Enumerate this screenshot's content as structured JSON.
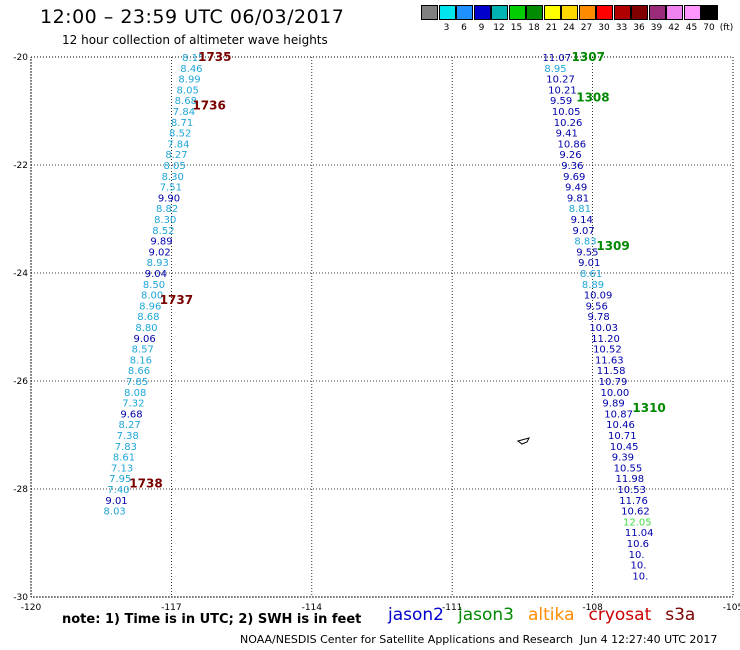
{
  "header": {
    "title": "12:00 – 23:59 UTC 06/03/2017",
    "subtitle": "12 hour collection of altimeter wave heights"
  },
  "colors": {
    "dark_blue": "#0000aa",
    "light_blue": "#1fa6d8",
    "dark_red": "#7a0000",
    "green": "#008800",
    "light_green": "#44dd44"
  },
  "colorbar": {
    "swatches": [
      "#808080",
      "#00e5ee",
      "#1e90ff",
      "#0000cd",
      "#00b2b2",
      "#00cd00",
      "#008b00",
      "#ffff00",
      "#ffd700",
      "#ff8c00",
      "#ff0000",
      "#b00000",
      "#800000",
      "#9a2a7a",
      "#ee82ee",
      "#ff96ff",
      "#000000"
    ],
    "labels": [
      "3",
      "6",
      "9",
      "12",
      "15",
      "18",
      "21",
      "24",
      "27",
      "30",
      "33",
      "36",
      "39",
      "42",
      "45",
      "70",
      "(ft)"
    ]
  },
  "axes": {
    "lat_labels": [
      "-20",
      "-22",
      "-24",
      "-26",
      "-28",
      "-30"
    ],
    "lon_labels": [
      "-120",
      "-117",
      "-114",
      "-111",
      "-108",
      "-105"
    ]
  },
  "chart_data": {
    "type": "scatter",
    "xlim": [
      -120,
      -105
    ],
    "ylim": [
      -30,
      -20
    ],
    "grid": true,
    "tracks": [
      {
        "points": [
          {
            "v": "8.15",
            "lat": -20.0,
            "lon": -116.77,
            "c": "light_blue"
          },
          {
            "v": "8.46",
            "lat": -20.2,
            "lon": -116.81,
            "c": "light_blue"
          },
          {
            "v": "8.99",
            "lat": -20.4,
            "lon": -116.85,
            "c": "light_blue"
          },
          {
            "v": "8.05",
            "lat": -20.6,
            "lon": -116.89,
            "c": "light_blue"
          },
          {
            "v": "8.68",
            "lat": -20.8,
            "lon": -116.93,
            "c": "light_blue"
          },
          {
            "v": "7.84",
            "lat": -21.0,
            "lon": -116.97,
            "c": "light_blue"
          },
          {
            "v": "8.71",
            "lat": -21.2,
            "lon": -117.01,
            "c": "light_blue"
          },
          {
            "v": "8.52",
            "lat": -21.4,
            "lon": -117.05,
            "c": "light_blue"
          },
          {
            "v": "7.84",
            "lat": -21.6,
            "lon": -117.09,
            "c": "light_blue"
          },
          {
            "v": "8.27",
            "lat": -21.8,
            "lon": -117.13,
            "c": "light_blue"
          },
          {
            "v": "8.05",
            "lat": -22.0,
            "lon": -117.17,
            "c": "light_blue"
          },
          {
            "v": "8.30",
            "lat": -22.2,
            "lon": -117.21,
            "c": "light_blue"
          },
          {
            "v": "7.51",
            "lat": -22.4,
            "lon": -117.25,
            "c": "light_blue"
          },
          {
            "v": "9.90",
            "lat": -22.6,
            "lon": -117.29,
            "c": "dark_blue"
          },
          {
            "v": "8.82",
            "lat": -22.8,
            "lon": -117.33,
            "c": "light_blue"
          },
          {
            "v": "8.30",
            "lat": -23.0,
            "lon": -117.37,
            "c": "light_blue"
          },
          {
            "v": "8.52",
            "lat": -23.2,
            "lon": -117.41,
            "c": "light_blue"
          },
          {
            "v": "9.89",
            "lat": -23.4,
            "lon": -117.45,
            "c": "dark_blue"
          },
          {
            "v": "9.02",
            "lat": -23.6,
            "lon": -117.49,
            "c": "dark_blue"
          },
          {
            "v": "8.93",
            "lat": -23.8,
            "lon": -117.53,
            "c": "light_blue"
          },
          {
            "v": "9.04",
            "lat": -24.0,
            "lon": -117.57,
            "c": "dark_blue"
          },
          {
            "v": "8.50",
            "lat": -24.2,
            "lon": -117.61,
            "c": "light_blue"
          },
          {
            "v": "8.00",
            "lat": -24.4,
            "lon": -117.65,
            "c": "light_blue"
          },
          {
            "v": "8.96",
            "lat": -24.6,
            "lon": -117.69,
            "c": "light_blue"
          },
          {
            "v": "8.68",
            "lat": -24.8,
            "lon": -117.73,
            "c": "light_blue"
          },
          {
            "v": "8.80",
            "lat": -25.0,
            "lon": -117.77,
            "c": "light_blue"
          },
          {
            "v": "9.06",
            "lat": -25.2,
            "lon": -117.81,
            "c": "dark_blue"
          },
          {
            "v": "8.57",
            "lat": -25.4,
            "lon": -117.85,
            "c": "light_blue"
          },
          {
            "v": "8.16",
            "lat": -25.6,
            "lon": -117.89,
            "c": "light_blue"
          },
          {
            "v": "8.66",
            "lat": -25.8,
            "lon": -117.93,
            "c": "light_blue"
          },
          {
            "v": "7.85",
            "lat": -26.0,
            "lon": -117.97,
            "c": "light_blue"
          },
          {
            "v": "8.08",
            "lat": -26.2,
            "lon": -118.01,
            "c": "light_blue"
          },
          {
            "v": "7.32",
            "lat": -26.4,
            "lon": -118.05,
            "c": "light_blue"
          },
          {
            "v": "9.68",
            "lat": -26.6,
            "lon": -118.09,
            "c": "dark_blue"
          },
          {
            "v": "8.27",
            "lat": -26.8,
            "lon": -118.13,
            "c": "light_blue"
          },
          {
            "v": "7.38",
            "lat": -27.0,
            "lon": -118.17,
            "c": "light_blue"
          },
          {
            "v": "7.83",
            "lat": -27.2,
            "lon": -118.21,
            "c": "light_blue"
          },
          {
            "v": "8.61",
            "lat": -27.4,
            "lon": -118.25,
            "c": "light_blue"
          },
          {
            "v": "7.13",
            "lat": -27.6,
            "lon": -118.29,
            "c": "light_blue"
          },
          {
            "v": "7.95",
            "lat": -27.8,
            "lon": -118.33,
            "c": "light_blue"
          },
          {
            "v": "7.40",
            "lat": -28.0,
            "lon": -118.37,
            "c": "light_blue"
          },
          {
            "v": "9.01",
            "lat": -28.2,
            "lon": -118.41,
            "c": "dark_blue"
          },
          {
            "v": "8.03",
            "lat": -28.4,
            "lon": -118.45,
            "c": "light_blue"
          }
        ],
        "times": [
          {
            "t": "1735",
            "lat": -20.0,
            "lon": -116.43,
            "c": "dark_red"
          },
          {
            "t": "1736",
            "lat": -20.9,
            "lon": -116.55,
            "c": "dark_red"
          },
          {
            "t": "1737",
            "lat": -24.5,
            "lon": -117.25,
            "c": "dark_red"
          },
          {
            "t": "1738",
            "lat": -27.9,
            "lon": -117.9,
            "c": "dark_red"
          }
        ]
      },
      {
        "points": [
          {
            "v": "11.07",
            "lat": -20.0,
            "lon": -109.07,
            "c": "dark_blue"
          },
          {
            "v": "8.95",
            "lat": -20.2,
            "lon": -109.03,
            "c": "light_blue"
          },
          {
            "v": "10.27",
            "lat": -20.4,
            "lon": -108.99,
            "c": "dark_blue"
          },
          {
            "v": "10.21",
            "lat": -20.6,
            "lon": -108.95,
            "c": "dark_blue"
          },
          {
            "v": "9.59",
            "lat": -20.8,
            "lon": -108.91,
            "c": "dark_blue"
          },
          {
            "v": "10.05",
            "lat": -21.0,
            "lon": -108.87,
            "c": "dark_blue"
          },
          {
            "v": "10.26",
            "lat": -21.2,
            "lon": -108.83,
            "c": "dark_blue"
          },
          {
            "v": "9.41",
            "lat": -21.4,
            "lon": -108.79,
            "c": "dark_blue"
          },
          {
            "v": "10.86",
            "lat": -21.6,
            "lon": -108.75,
            "c": "dark_blue"
          },
          {
            "v": "9.26",
            "lat": -21.8,
            "lon": -108.71,
            "c": "dark_blue"
          },
          {
            "v": "9.36",
            "lat": -22.0,
            "lon": -108.67,
            "c": "dark_blue"
          },
          {
            "v": "9.69",
            "lat": -22.2,
            "lon": -108.63,
            "c": "dark_blue"
          },
          {
            "v": "9.49",
            "lat": -22.4,
            "lon": -108.59,
            "c": "dark_blue"
          },
          {
            "v": "9.81",
            "lat": -22.6,
            "lon": -108.55,
            "c": "dark_blue"
          },
          {
            "v": "8.81",
            "lat": -22.8,
            "lon": -108.51,
            "c": "light_blue"
          },
          {
            "v": "9.14",
            "lat": -23.0,
            "lon": -108.47,
            "c": "dark_blue"
          },
          {
            "v": "9.07",
            "lat": -23.2,
            "lon": -108.43,
            "c": "dark_blue"
          },
          {
            "v": "8.83",
            "lat": -23.4,
            "lon": -108.39,
            "c": "light_blue"
          },
          {
            "v": "9.55",
            "lat": -23.6,
            "lon": -108.35,
            "c": "dark_blue"
          },
          {
            "v": "9.01",
            "lat": -23.8,
            "lon": -108.31,
            "c": "dark_blue"
          },
          {
            "v": "8.61",
            "lat": -24.0,
            "lon": -108.27,
            "c": "light_blue"
          },
          {
            "v": "8.89",
            "lat": -24.2,
            "lon": -108.23,
            "c": "light_blue"
          },
          {
            "v": "10.09",
            "lat": -24.4,
            "lon": -108.19,
            "c": "dark_blue"
          },
          {
            "v": "9.56",
            "lat": -24.6,
            "lon": -108.15,
            "c": "dark_blue"
          },
          {
            "v": "9.78",
            "lat": -24.8,
            "lon": -108.11,
            "c": "dark_blue"
          },
          {
            "v": "10.03",
            "lat": -25.0,
            "lon": -108.07,
            "c": "dark_blue"
          },
          {
            "v": "11.20",
            "lat": -25.2,
            "lon": -108.03,
            "c": "dark_blue"
          },
          {
            "v": "10.52",
            "lat": -25.4,
            "lon": -107.99,
            "c": "dark_blue"
          },
          {
            "v": "11.63",
            "lat": -25.6,
            "lon": -107.95,
            "c": "dark_blue"
          },
          {
            "v": "11.58",
            "lat": -25.8,
            "lon": -107.91,
            "c": "dark_blue"
          },
          {
            "v": "10.79",
            "lat": -26.0,
            "lon": -107.87,
            "c": "dark_blue"
          },
          {
            "v": "10.00",
            "lat": -26.2,
            "lon": -107.83,
            "c": "dark_blue"
          },
          {
            "v": "9.89",
            "lat": -26.4,
            "lon": -107.79,
            "c": "dark_blue"
          },
          {
            "v": "10.87",
            "lat": -26.6,
            "lon": -107.75,
            "c": "dark_blue"
          },
          {
            "v": "10.46",
            "lat": -26.8,
            "lon": -107.71,
            "c": "dark_blue"
          },
          {
            "v": "10.71",
            "lat": -27.0,
            "lon": -107.67,
            "c": "dark_blue"
          },
          {
            "v": "10.45",
            "lat": -27.2,
            "lon": -107.63,
            "c": "dark_blue"
          },
          {
            "v": "9.39",
            "lat": -27.4,
            "lon": -107.59,
            "c": "dark_blue"
          },
          {
            "v": "10.55",
            "lat": -27.6,
            "lon": -107.55,
            "c": "dark_blue"
          },
          {
            "v": "11.98",
            "lat": -27.8,
            "lon": -107.51,
            "c": "dark_blue"
          },
          {
            "v": "10.53",
            "lat": -28.0,
            "lon": -107.47,
            "c": "dark_blue"
          },
          {
            "v": "11.76",
            "lat": -28.2,
            "lon": -107.43,
            "c": "dark_blue"
          },
          {
            "v": "10.62",
            "lat": -28.4,
            "lon": -107.39,
            "c": "dark_blue"
          },
          {
            "v": "12.05",
            "lat": -28.6,
            "lon": -107.35,
            "c": "light_green"
          },
          {
            "v": "11.04",
            "lat": -28.8,
            "lon": -107.31,
            "c": "dark_blue"
          },
          {
            "v": "10.6",
            "lat": -29.0,
            "lon": -107.27,
            "c": "dark_blue"
          },
          {
            "v": "10.",
            "lat": -29.2,
            "lon": -107.23,
            "c": "dark_blue"
          },
          {
            "v": "10.",
            "lat": -29.4,
            "lon": -107.19,
            "c": "dark_blue"
          },
          {
            "v": "10.",
            "lat": -29.6,
            "lon": -107.15,
            "c": "dark_blue"
          }
        ],
        "times": [
          {
            "t": "1307",
            "lat": -20.0,
            "lon": -108.45,
            "c": "green"
          },
          {
            "t": "1308",
            "lat": -20.75,
            "lon": -108.35,
            "c": "green"
          },
          {
            "t": "1309",
            "lat": -23.5,
            "lon": -107.92,
            "c": "green"
          },
          {
            "t": "1310",
            "lat": -26.5,
            "lon": -107.15,
            "c": "green"
          }
        ]
      }
    ]
  },
  "footer": {
    "note": "note:  1) Time is in UTC;  2) SWH is in feet",
    "satellites": [
      {
        "name": "jason2",
        "color": "#0000cc"
      },
      {
        "name": "jason3",
        "color": "#008800"
      },
      {
        "name": "altika",
        "color": "#ff8c00"
      },
      {
        "name": "cryosat",
        "color": "#cc0000"
      },
      {
        "name": "s3a",
        "color": "#7a0000"
      }
    ],
    "credit": "NOAA/NESDIS Center for Satellite Applications and Research",
    "timestamp": "Jun  4 12:27:40 UTC 2017"
  }
}
